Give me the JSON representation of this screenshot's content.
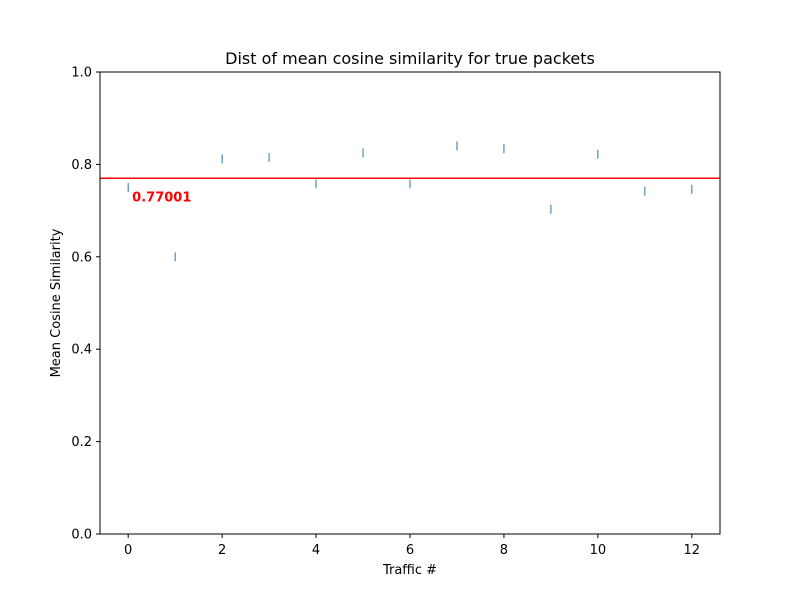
{
  "chart_data": {
    "type": "scatter",
    "title": "Dist of mean cosine similarity for true packets",
    "xlabel": "Traffic #",
    "ylabel": "Mean Cosine Similarity",
    "xlim": [
      -0.6,
      12.6
    ],
    "ylim": [
      0.0,
      1.0
    ],
    "x_ticks": [
      0,
      2,
      4,
      6,
      8,
      10,
      12
    ],
    "y_ticks": [
      0.0,
      0.2,
      0.4,
      0.6,
      0.8,
      1.0
    ],
    "x_tick_labels": [
      "0",
      "2",
      "4",
      "6",
      "8",
      "10",
      "12"
    ],
    "y_tick_labels": [
      "0.0",
      "0.2",
      "0.4",
      "0.6",
      "0.8",
      "1.0"
    ],
    "marker": "vertical-line",
    "grid": false,
    "series": [
      {
        "color": "#1f77b4",
        "x": [
          0,
          1,
          2,
          3,
          4,
          5,
          6,
          7,
          8,
          9,
          10,
          11,
          12
        ],
        "y": [
          0.75,
          0.6,
          0.812,
          0.815,
          0.758,
          0.825,
          0.758,
          0.84,
          0.834,
          0.703,
          0.822,
          0.742,
          0.746
        ]
      }
    ],
    "reference_line": {
      "y": 0.77001,
      "color": "#ff0000",
      "label": "0.77001"
    }
  }
}
